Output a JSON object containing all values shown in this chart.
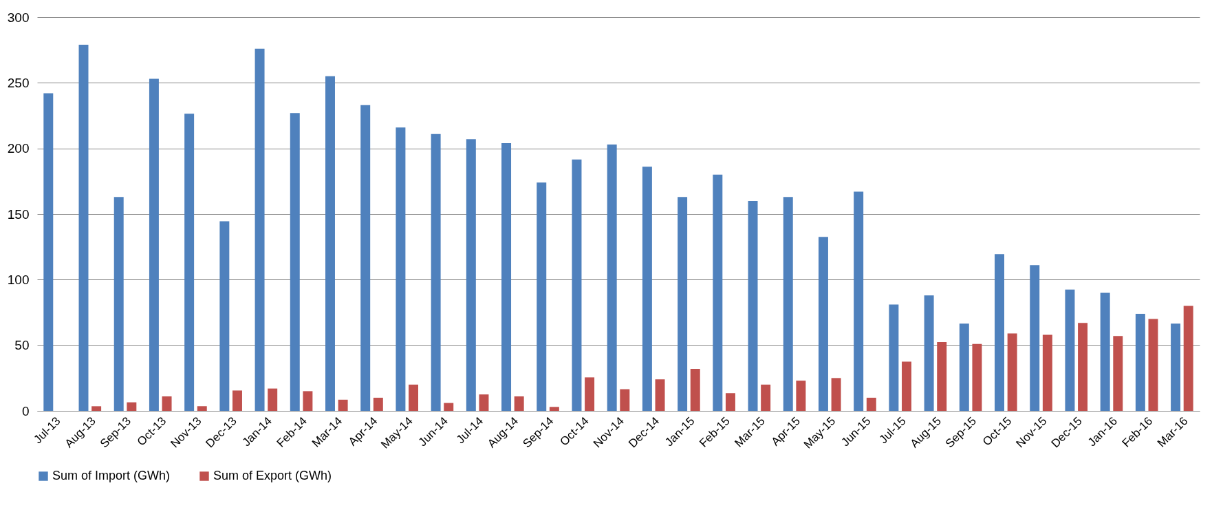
{
  "chart_data": {
    "type": "bar",
    "categories": [
      "Jul-13",
      "Aug-13",
      "Sep-13",
      "Oct-13",
      "Nov-13",
      "Dec-13",
      "Jan-14",
      "Feb-14",
      "Mar-14",
      "Apr-14",
      "May-14",
      "Jun-14",
      "Jul-14",
      "Aug-14",
      "Sep-14",
      "Oct-14",
      "Nov-14",
      "Dec-14",
      "Jan-15",
      "Feb-15",
      "Mar-15",
      "Apr-15",
      "May-15",
      "Jun-15",
      "Jul-15",
      "Aug-15",
      "Sep-15",
      "Oct-15",
      "Nov-15",
      "Dec-15",
      "Jan-16",
      "Feb-16",
      "Mar-16"
    ],
    "series": [
      {
        "name": "Sum of Import (GWh)",
        "color": "#4f81bd",
        "values": [
          242,
          279,
          163,
          253,
          226.5,
          144.5,
          276,
          227,
          255,
          233,
          216,
          211,
          207,
          204,
          174,
          191.5,
          203,
          186,
          163,
          180,
          160,
          163,
          132.5,
          167,
          81,
          88,
          66.5,
          119.5,
          111,
          92.5,
          90,
          74,
          66.5
        ]
      },
      {
        "name": "Sum of Export (GWh)",
        "color": "#c0504d",
        "values": [
          null,
          3.5,
          6.5,
          11,
          3.5,
          15.5,
          17,
          15,
          8.5,
          10,
          20,
          6,
          12.5,
          11,
          3,
          25.5,
          16.5,
          24,
          32,
          13.5,
          20,
          23,
          25,
          10,
          37.5,
          52.5,
          51,
          59,
          58,
          67,
          57,
          70,
          80
        ]
      }
    ],
    "ylim": [
      0,
      300
    ],
    "yticks": [
      0,
      50,
      100,
      150,
      200,
      250,
      300
    ],
    "grid": "y",
    "legend": "bottom"
  }
}
